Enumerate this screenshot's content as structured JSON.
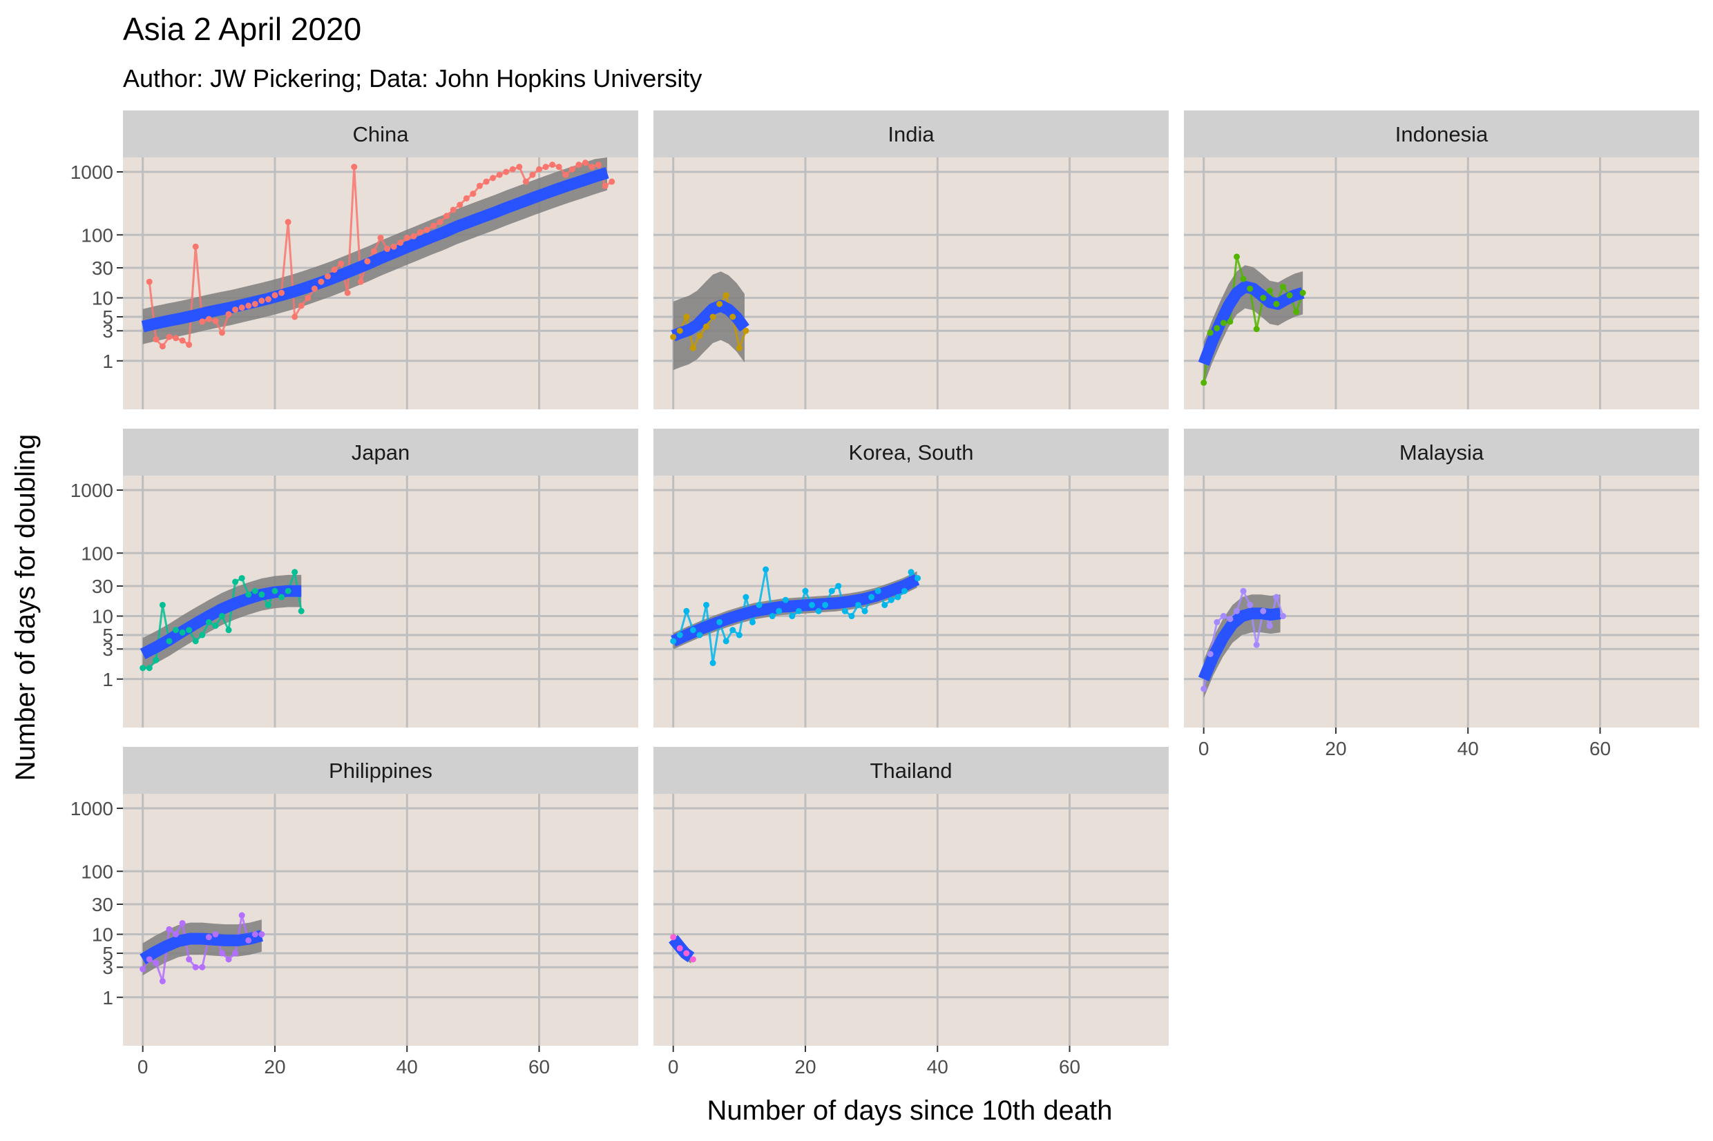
{
  "title": "Asia 2 April 2020",
  "subtitle": "Author: JW Pickering; Data: John Hopkins University",
  "colors": {
    "panel_bg": "#E8DFD8",
    "strip_bg": "#D0D0D0",
    "grid": "#BEBEBE",
    "smooth_line": "#2853FF",
    "ribbon": "#7F7F7F"
  },
  "chart_data": {
    "type": "line",
    "layout": "facet_wrap 3 columns, shared axes",
    "xlabel": "Number of days since 10th death",
    "ylabel": "Number of days for doubling",
    "x_ticks": [
      0,
      20,
      40,
      60
    ],
    "x_tick_labels": [
      "0",
      "20",
      "40",
      "60"
    ],
    "xlim": [
      -3,
      75
    ],
    "y_scale": "log10",
    "y_ticks": [
      1,
      3,
      5,
      10,
      30,
      100,
      1000
    ],
    "y_tick_labels": [
      "1",
      "3",
      "5",
      "10",
      "30",
      "100",
      "1000"
    ],
    "ylim": [
      0.17,
      1700
    ],
    "grid": true,
    "legend": "none",
    "smooth": "loess fit (blue) with grey confidence band",
    "panels": [
      {
        "name": "China",
        "color": "#F8766D",
        "x": [
          1,
          2,
          3,
          4,
          5,
          6,
          7,
          8,
          9,
          10,
          11,
          12,
          13,
          14,
          15,
          16,
          17,
          18,
          19,
          20,
          21,
          22,
          23,
          24,
          25,
          26,
          27,
          28,
          29,
          30,
          31,
          32,
          33,
          34,
          35,
          36,
          37,
          38,
          39,
          40,
          41,
          42,
          43,
          44,
          45,
          46,
          47,
          48,
          49,
          50,
          51,
          52,
          53,
          54,
          55,
          56,
          57,
          58,
          59,
          60,
          61,
          62,
          63,
          64,
          65,
          66,
          67,
          68,
          69,
          70,
          71
        ],
        "y": [
          18,
          2.2,
          1.7,
          2.4,
          2.3,
          2.1,
          1.8,
          65,
          4.2,
          4.6,
          4.3,
          2.8,
          5.5,
          6.5,
          7,
          7.5,
          8,
          9,
          9.5,
          11,
          12,
          160,
          5,
          7.5,
          10,
          14,
          18,
          22,
          28,
          35,
          12,
          1200,
          18,
          38,
          55,
          90,
          60,
          65,
          75,
          90,
          95,
          110,
          120,
          140,
          160,
          200,
          250,
          300,
          380,
          450,
          600,
          700,
          800,
          900,
          1000,
          1100,
          1200,
          700,
          900,
          1100,
          1200,
          1300,
          1200,
          900,
          1100,
          1300,
          1400,
          1200,
          1300,
          600,
          700
        ],
        "smooth": [
          3.5,
          3.9,
          4.3,
          4.7,
          5.2,
          5.8,
          6.4,
          7.0,
          7.8,
          8.7,
          9.7,
          11,
          12.5,
          14.5,
          17,
          20,
          24,
          29,
          35,
          43,
          52,
          63,
          76,
          92,
          110,
          135,
          160,
          190,
          225,
          270,
          320,
          380,
          450,
          530,
          620,
          720,
          840,
          970
        ],
        "smooth_x_step": 1.9,
        "band_rel": 1.9
      },
      {
        "name": "India",
        "color": "#C49A00",
        "x": [
          0,
          1,
          2,
          3,
          4,
          5,
          6,
          7,
          8,
          9,
          10,
          11
        ],
        "y": [
          2.4,
          3,
          5,
          1.6,
          2.5,
          3.5,
          5,
          8,
          11,
          5,
          1.6,
          3
        ],
        "smooth": [
          2.5,
          2.8,
          3.1,
          3.7,
          5.0,
          6.7,
          7.5,
          6.5,
          4.9,
          3.3
        ],
        "smooth_x_step": 1.2,
        "band_rel": 3.5
      },
      {
        "name": "Indonesia",
        "color": "#53B400",
        "x": [
          0,
          1,
          2,
          3,
          4,
          5,
          6,
          7,
          8,
          9,
          10,
          11,
          12,
          13,
          14,
          15
        ],
        "y": [
          0.45,
          2.8,
          3.3,
          4,
          4.2,
          45,
          20,
          14,
          3.2,
          10,
          13,
          8,
          15,
          11,
          6,
          12
        ],
        "smooth": [
          0.9,
          2.0,
          4.0,
          7.5,
          12,
          15,
          14,
          11,
          8.5,
          8,
          9.5,
          11,
          12
        ],
        "smooth_x_step": 1.25,
        "band_rel": 2.2
      },
      {
        "name": "Japan",
        "color": "#00C094",
        "x": [
          0,
          1,
          2,
          3,
          4,
          5,
          6,
          7,
          8,
          9,
          10,
          11,
          12,
          13,
          14,
          15,
          16,
          17,
          18,
          19,
          20,
          21,
          22,
          23,
          24
        ],
        "y": [
          1.5,
          1.5,
          2,
          15,
          4,
          6,
          5.5,
          6,
          4,
          5,
          8,
          7,
          10,
          6,
          35,
          40,
          22,
          25,
          22,
          15,
          25,
          20,
          25,
          50,
          12
        ],
        "smooth": [
          2.5,
          3.2,
          4.2,
          5.7,
          7.6,
          10,
          13,
          16,
          19,
          22,
          24,
          25,
          25
        ],
        "smooth_x_step": 2,
        "band_rel": 1.8
      },
      {
        "name": "Korea, South",
        "color": "#00B6EB",
        "x": [
          0,
          1,
          2,
          3,
          4,
          5,
          6,
          7,
          8,
          9,
          10,
          11,
          12,
          13,
          14,
          15,
          16,
          17,
          18,
          19,
          20,
          21,
          22,
          23,
          24,
          25,
          26,
          27,
          28,
          29,
          30,
          31,
          32,
          33,
          34,
          35,
          36,
          37
        ],
        "y": [
          4,
          5,
          12,
          6,
          5,
          15,
          1.8,
          8,
          4,
          6,
          5,
          20,
          8,
          15,
          55,
          10,
          12,
          18,
          10,
          12,
          25,
          15,
          12,
          15,
          25,
          30,
          12,
          10,
          15,
          12,
          20,
          25,
          15,
          18,
          20,
          25,
          50,
          40
        ],
        "smooth": [
          4,
          5,
          6.2,
          7.5,
          9,
          10.5,
          12,
          13,
          14,
          14.5,
          15,
          15.5,
          16,
          17,
          18.5,
          21,
          25,
          30,
          38
        ],
        "smooth_x_step": 2.05,
        "band_rel": 1.35
      },
      {
        "name": "Malaysia",
        "color": "#A58AFF",
        "x": [
          0,
          1,
          2,
          3,
          4,
          5,
          6,
          7,
          8,
          9,
          10,
          11,
          12
        ],
        "y": [
          0.7,
          2.5,
          8,
          10,
          9,
          12,
          25,
          15,
          3.5,
          12,
          7,
          20,
          10
        ],
        "smooth": [
          1.0,
          2.3,
          4.5,
          7.5,
          10,
          11,
          11,
          10.5,
          11
        ],
        "smooth_x_step": 1.45,
        "band_rel": 2.0
      },
      {
        "name": "Philippines",
        "color": "#B36FFF",
        "x": [
          0,
          1,
          2,
          3,
          4,
          5,
          6,
          7,
          8,
          9,
          10,
          11,
          12,
          13,
          14,
          15,
          16,
          17,
          18
        ],
        "y": [
          2.8,
          4,
          3.5,
          1.8,
          12,
          10,
          15,
          4,
          3,
          3,
          9,
          10,
          5,
          4,
          5,
          20,
          8,
          10,
          10
        ],
        "smooth": [
          4,
          5.2,
          6.5,
          7.8,
          8.5,
          8.5,
          8.2,
          8,
          8,
          8.5,
          9.5
        ],
        "smooth_x_step": 1.8,
        "band_rel": 1.8
      },
      {
        "name": "Thailand",
        "color": "#FB61D7",
        "x": [
          0,
          1,
          2,
          3
        ],
        "y": [
          9,
          6,
          5,
          4
        ],
        "smooth": [
          8.5,
          6.5,
          5,
          4.3
        ],
        "smooth_x_step": 0.9,
        "band_rel": 1.25
      }
    ]
  }
}
